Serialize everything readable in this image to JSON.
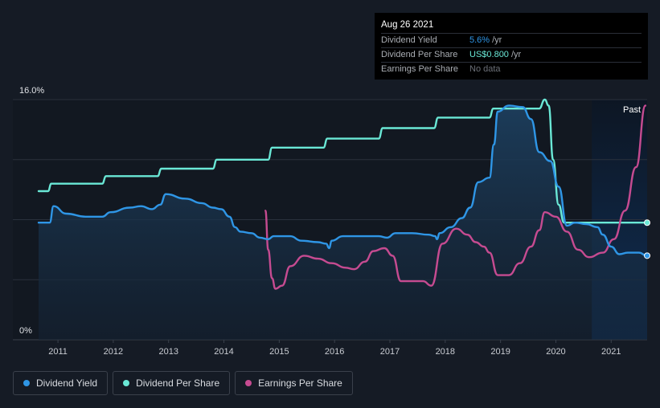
{
  "tooltip": {
    "date": "Aug 26 2021",
    "rows": [
      {
        "label": "Dividend Yield",
        "value": "5.6%",
        "unit": "/yr"
      },
      {
        "label": "Dividend Per Share",
        "value": "US$0.800",
        "unit": "/yr"
      },
      {
        "label": "Earnings Per Share",
        "value": "No data",
        "unit": ""
      }
    ]
  },
  "legend": [
    {
      "label": "Dividend Yield",
      "color": "#2f96e6"
    },
    {
      "label": "Dividend Per Share",
      "color": "#6ae8d6"
    },
    {
      "label": "Earnings Per Share",
      "color": "#c64b91"
    }
  ],
  "chart_data": {
    "type": "line",
    "title": "",
    "xlabel": "",
    "ylabel": "",
    "y_max_label": "16.0%",
    "y_min_label": "0%",
    "past_label": "Past",
    "ylim": [
      0,
      16
    ],
    "xlim": [
      2010.65,
      2021.65
    ],
    "x_ticks": [
      "2011",
      "2012",
      "2013",
      "2014",
      "2015",
      "2016",
      "2017",
      "2018",
      "2019",
      "2020",
      "2021"
    ],
    "highlight_start": 2020.65,
    "colors": {
      "yield": "#2f96e6",
      "dps": "#6ae8d6",
      "eps": "#c64b91"
    },
    "series": [
      {
        "name": "Dividend Yield",
        "key": "yield",
        "points": [
          [
            2010.65,
            7.8
          ],
          [
            2010.85,
            7.8
          ],
          [
            2010.92,
            8.9
          ],
          [
            2011.15,
            8.4
          ],
          [
            2011.5,
            8.2
          ],
          [
            2011.8,
            8.2
          ],
          [
            2011.95,
            8.5
          ],
          [
            2012.3,
            8.8
          ],
          [
            2012.5,
            8.9
          ],
          [
            2012.7,
            8.7
          ],
          [
            2012.85,
            9.0
          ],
          [
            2012.95,
            9.7
          ],
          [
            2013.3,
            9.4
          ],
          [
            2013.6,
            9.1
          ],
          [
            2013.8,
            8.8
          ],
          [
            2013.95,
            8.7
          ],
          [
            2014.1,
            8.2
          ],
          [
            2014.2,
            7.5
          ],
          [
            2014.3,
            7.2
          ],
          [
            2014.5,
            7.1
          ],
          [
            2014.65,
            6.8
          ],
          [
            2014.8,
            6.7
          ],
          [
            2014.9,
            6.9
          ],
          [
            2015.2,
            6.9
          ],
          [
            2015.4,
            6.6
          ],
          [
            2015.7,
            6.5
          ],
          [
            2015.85,
            6.4
          ],
          [
            2015.9,
            6.1
          ],
          [
            2015.95,
            6.6
          ],
          [
            2016.15,
            6.9
          ],
          [
            2016.4,
            6.9
          ],
          [
            2016.8,
            6.9
          ],
          [
            2016.95,
            6.8
          ],
          [
            2017.1,
            7.1
          ],
          [
            2017.4,
            7.1
          ],
          [
            2017.7,
            7.0
          ],
          [
            2017.82,
            6.9
          ],
          [
            2017.85,
            6.7
          ],
          [
            2017.9,
            7.1
          ],
          [
            2018.1,
            7.5
          ],
          [
            2018.3,
            8.1
          ],
          [
            2018.45,
            8.8
          ],
          [
            2018.6,
            10.5
          ],
          [
            2018.8,
            10.8
          ],
          [
            2018.88,
            13.0
          ],
          [
            2018.95,
            15.2
          ],
          [
            2019.15,
            15.6
          ],
          [
            2019.4,
            15.5
          ],
          [
            2019.55,
            14.7
          ],
          [
            2019.7,
            12.5
          ],
          [
            2019.9,
            11.9
          ],
          [
            2020.05,
            10.2
          ],
          [
            2020.2,
            7.6
          ],
          [
            2020.35,
            7.8
          ],
          [
            2020.55,
            7.7
          ],
          [
            2020.75,
            7.5
          ],
          [
            2020.85,
            7.0
          ],
          [
            2021.0,
            6.2
          ],
          [
            2021.15,
            5.7
          ],
          [
            2021.3,
            5.8
          ],
          [
            2021.5,
            5.8
          ],
          [
            2021.65,
            5.6
          ]
        ]
      },
      {
        "name": "Dividend Per Share",
        "key": "dps",
        "points": [
          [
            2010.65,
            9.9
          ],
          [
            2010.82,
            9.9
          ],
          [
            2010.88,
            10.4
          ],
          [
            2011.8,
            10.4
          ],
          [
            2011.87,
            10.9
          ],
          [
            2012.8,
            10.9
          ],
          [
            2012.87,
            11.4
          ],
          [
            2013.8,
            11.4
          ],
          [
            2013.87,
            12.0
          ],
          [
            2014.8,
            12.0
          ],
          [
            2014.87,
            12.8
          ],
          [
            2015.8,
            12.8
          ],
          [
            2015.87,
            13.4
          ],
          [
            2016.8,
            13.4
          ],
          [
            2016.87,
            14.1
          ],
          [
            2017.8,
            14.1
          ],
          [
            2017.87,
            14.8
          ],
          [
            2018.8,
            14.8
          ],
          [
            2018.87,
            15.4
          ],
          [
            2019.7,
            15.4
          ],
          [
            2019.8,
            16.0
          ],
          [
            2019.87,
            15.6
          ],
          [
            2019.95,
            12.0
          ],
          [
            2020.05,
            9.0
          ],
          [
            2020.15,
            7.8
          ],
          [
            2021.65,
            7.8
          ]
        ]
      },
      {
        "name": "Earnings Per Share",
        "key": "eps",
        "points": [
          [
            2014.75,
            8.6
          ],
          [
            2014.8,
            6.0
          ],
          [
            2014.87,
            4.1
          ],
          [
            2014.93,
            3.4
          ],
          [
            2015.05,
            3.6
          ],
          [
            2015.2,
            4.9
          ],
          [
            2015.45,
            5.6
          ],
          [
            2015.7,
            5.4
          ],
          [
            2015.95,
            5.1
          ],
          [
            2016.2,
            4.8
          ],
          [
            2016.35,
            4.7
          ],
          [
            2016.55,
            5.2
          ],
          [
            2016.7,
            5.9
          ],
          [
            2016.9,
            6.1
          ],
          [
            2017.05,
            5.6
          ],
          [
            2017.2,
            3.9
          ],
          [
            2017.45,
            3.9
          ],
          [
            2017.6,
            3.9
          ],
          [
            2017.75,
            3.6
          ],
          [
            2017.95,
            6.4
          ],
          [
            2018.2,
            7.4
          ],
          [
            2018.4,
            7.0
          ],
          [
            2018.55,
            6.5
          ],
          [
            2018.7,
            6.2
          ],
          [
            2018.8,
            5.8
          ],
          [
            2018.95,
            4.3
          ],
          [
            2019.15,
            4.3
          ],
          [
            2019.35,
            5.1
          ],
          [
            2019.55,
            6.2
          ],
          [
            2019.7,
            7.3
          ],
          [
            2019.8,
            8.5
          ],
          [
            2020.0,
            8.2
          ],
          [
            2020.2,
            7.2
          ],
          [
            2020.4,
            6.0
          ],
          [
            2020.6,
            5.5
          ],
          [
            2020.85,
            5.8
          ],
          [
            2021.05,
            6.7
          ],
          [
            2021.25,
            8.6
          ],
          [
            2021.45,
            11.5
          ],
          [
            2021.62,
            15.6
          ]
        ]
      }
    ]
  }
}
